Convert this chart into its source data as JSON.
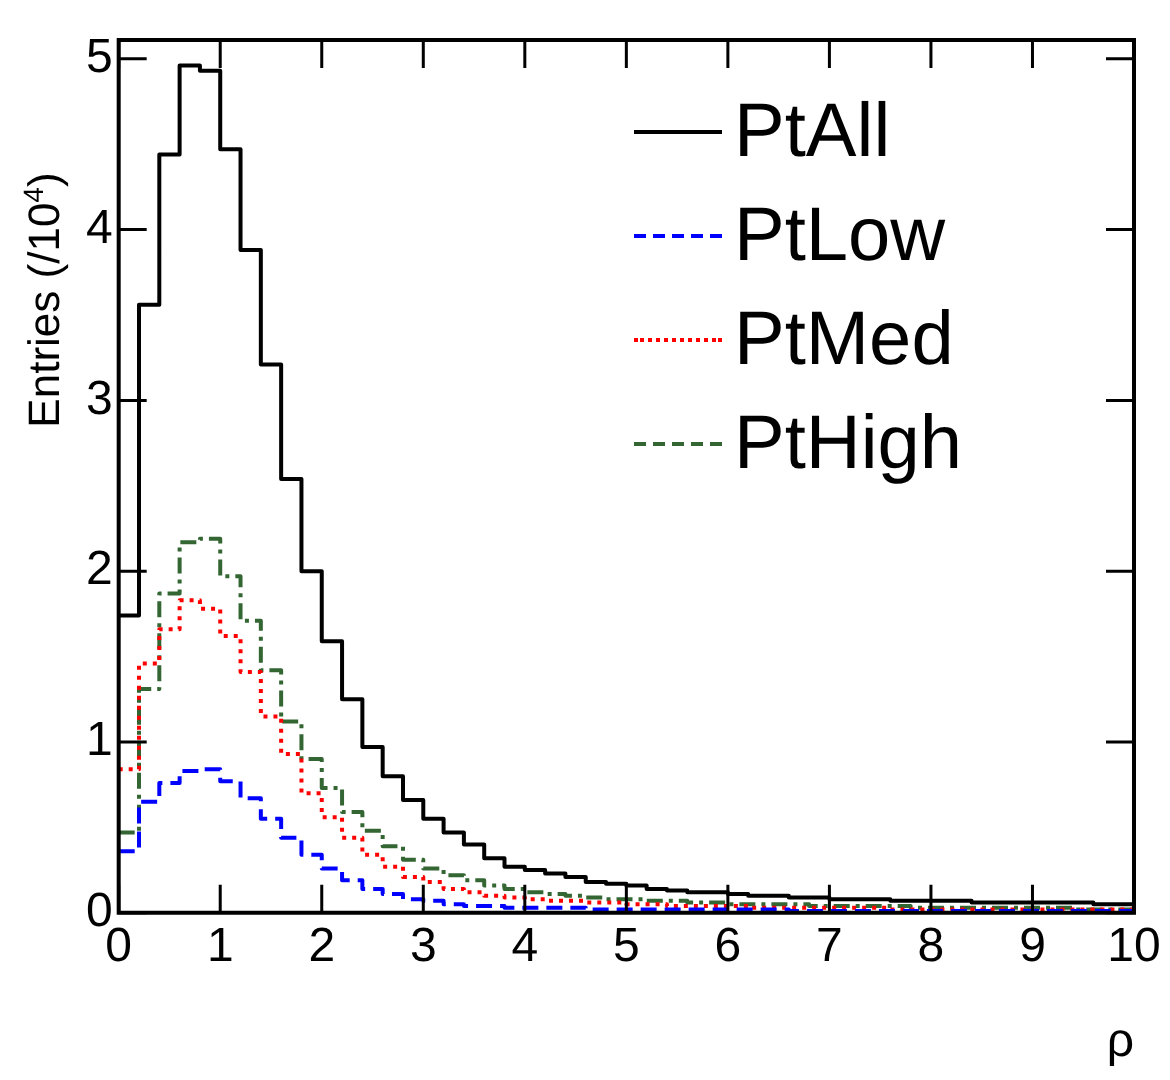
{
  "chart_data": {
    "type": "histogram",
    "xlabel": "ρ",
    "ylabel": "Entries (/10$^{4}$)",
    "bins": [
      0,
      0.2,
      0.4,
      0.6,
      0.8,
      1,
      1.2,
      1.4,
      1.6,
      1.8,
      2,
      2.2,
      2.4,
      2.6,
      2.8,
      3,
      3.2,
      3.4,
      3.6,
      3.8,
      4,
      4.2,
      4.4,
      4.6,
      4.8,
      5,
      5.2,
      5.4,
      5.6,
      5.8,
      6,
      6.2,
      6.4,
      6.6,
      6.8,
      7,
      7.2,
      7.4,
      7.6,
      7.8,
      8,
      8.2,
      8.4,
      8.6,
      8.8,
      9,
      9.2,
      9.4,
      9.6,
      9.8,
      10
    ],
    "series": [
      {
        "name": "PtAll",
        "color": "#000000",
        "line_style": "solid",
        "values": [
          1.74,
          3.56,
          4.44,
          4.96,
          4.93,
          4.47,
          3.88,
          3.21,
          2.54,
          2.0,
          1.59,
          1.25,
          0.97,
          0.8,
          0.66,
          0.55,
          0.47,
          0.4,
          0.32,
          0.27,
          0.25,
          0.23,
          0.21,
          0.18,
          0.17,
          0.16,
          0.14,
          0.13,
          0.12,
          0.12,
          0.11,
          0.1,
          0.1,
          0.09,
          0.09,
          0.08,
          0.08,
          0.08,
          0.07,
          0.07,
          0.07,
          0.07,
          0.06,
          0.06,
          0.06,
          0.06,
          0.06,
          0.06,
          0.05,
          0.05
        ]
      },
      {
        "name": "PtLow",
        "color": "#0000ff",
        "line_style": "dashed",
        "values": [
          0.36,
          0.65,
          0.76,
          0.83,
          0.84,
          0.77,
          0.67,
          0.55,
          0.44,
          0.34,
          0.26,
          0.19,
          0.14,
          0.11,
          0.08,
          0.07,
          0.05,
          0.04,
          0.04,
          0.03,
          0.03,
          0.03,
          0.03,
          0.02,
          0.02,
          0.02,
          0.02,
          0.02,
          0.02,
          0.02,
          0.02,
          0.02,
          0.02,
          0.01,
          0.01,
          0.01,
          0.01,
          0.01,
          0.01,
          0.01,
          0.01,
          0.01,
          0.01,
          0.01,
          0.01,
          0.01,
          0.01,
          0.01,
          0.01,
          0.01
        ]
      },
      {
        "name": "PtMed",
        "color": "#ff0000",
        "line_style": "dotted",
        "values": [
          0.84,
          1.46,
          1.66,
          1.83,
          1.78,
          1.62,
          1.41,
          1.15,
          0.93,
          0.7,
          0.56,
          0.44,
          0.34,
          0.27,
          0.21,
          0.18,
          0.14,
          0.12,
          0.1,
          0.09,
          0.08,
          0.07,
          0.07,
          0.06,
          0.06,
          0.05,
          0.05,
          0.04,
          0.04,
          0.04,
          0.04,
          0.03,
          0.03,
          0.03,
          0.03,
          0.03,
          0.03,
          0.03,
          0.02,
          0.02,
          0.02,
          0.02,
          0.02,
          0.02,
          0.02,
          0.02,
          0.02,
          0.02,
          0.02,
          0.02
        ]
      },
      {
        "name": "PtHigh",
        "color": "#336633",
        "line_style": "dashdot",
        "values": [
          0.47,
          1.31,
          1.87,
          2.17,
          2.19,
          1.97,
          1.71,
          1.42,
          1.12,
          0.9,
          0.73,
          0.59,
          0.48,
          0.39,
          0.31,
          0.26,
          0.22,
          0.19,
          0.16,
          0.14,
          0.12,
          0.11,
          0.1,
          0.09,
          0.08,
          0.08,
          0.07,
          0.07,
          0.06,
          0.06,
          0.05,
          0.05,
          0.05,
          0.05,
          0.04,
          0.04,
          0.04,
          0.04,
          0.04,
          0.03,
          0.03,
          0.03,
          0.03,
          0.03,
          0.03,
          0.03,
          0.03,
          0.02,
          0.02,
          0.02
        ]
      }
    ],
    "xlim": [
      0,
      10
    ],
    "xticks": [
      0,
      1,
      2,
      3,
      4,
      5,
      6,
      7,
      8,
      9,
      10
    ],
    "ylim": [
      0,
      5.11
    ],
    "yticks": [
      0,
      1,
      2,
      3,
      4,
      5
    ],
    "legend": "top right",
    "grid": false
  }
}
